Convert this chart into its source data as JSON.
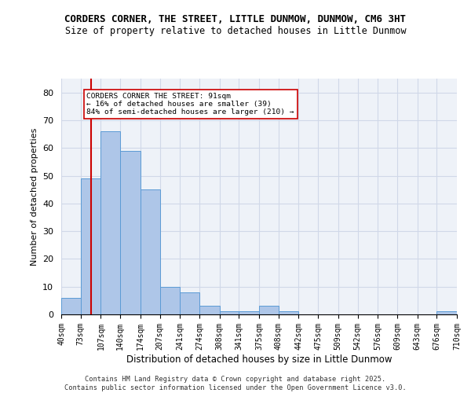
{
  "title1": "CORDERS CORNER, THE STREET, LITTLE DUNMOW, DUNMOW, CM6 3HT",
  "title2": "Size of property relative to detached houses in Little Dunmow",
  "xlabel": "Distribution of detached houses by size in Little Dunmow",
  "ylabel": "Number of detached properties",
  "bar_heights": [
    6,
    49,
    66,
    59,
    45,
    10,
    8,
    3,
    1,
    1,
    3,
    1,
    0,
    0,
    0,
    0,
    0,
    0,
    0,
    1
  ],
  "bin_labels": [
    "40sqm",
    "73sqm",
    "107sqm",
    "140sqm",
    "174sqm",
    "207sqm",
    "241sqm",
    "274sqm",
    "308sqm",
    "341sqm",
    "375sqm",
    "408sqm",
    "442sqm",
    "475sqm",
    "509sqm",
    "542sqm",
    "576sqm",
    "609sqm",
    "643sqm",
    "676sqm",
    "710sqm"
  ],
  "bar_color": "#aec6e8",
  "bar_edge_color": "#5b9bd5",
  "grid_color": "#d0d8e8",
  "bg_color": "#eef2f8",
  "vline_x": 91,
  "vline_color": "#cc0000",
  "annotation_text": "CORDERS CORNER THE STREET: 91sqm\n← 16% of detached houses are smaller (39)\n84% of semi-detached houses are larger (210) →",
  "annotation_box_color": "#ffffff",
  "annotation_border_color": "#cc0000",
  "ylim": [
    0,
    85
  ],
  "yticks": [
    0,
    10,
    20,
    30,
    40,
    50,
    60,
    70,
    80
  ],
  "footer_text": "Contains HM Land Registry data © Crown copyright and database right 2025.\nContains public sector information licensed under the Open Government Licence v3.0.",
  "bin_edges": [
    40,
    73,
    107,
    140,
    174,
    207,
    241,
    274,
    308,
    341,
    375,
    408,
    442,
    475,
    509,
    542,
    576,
    609,
    643,
    676,
    710
  ]
}
